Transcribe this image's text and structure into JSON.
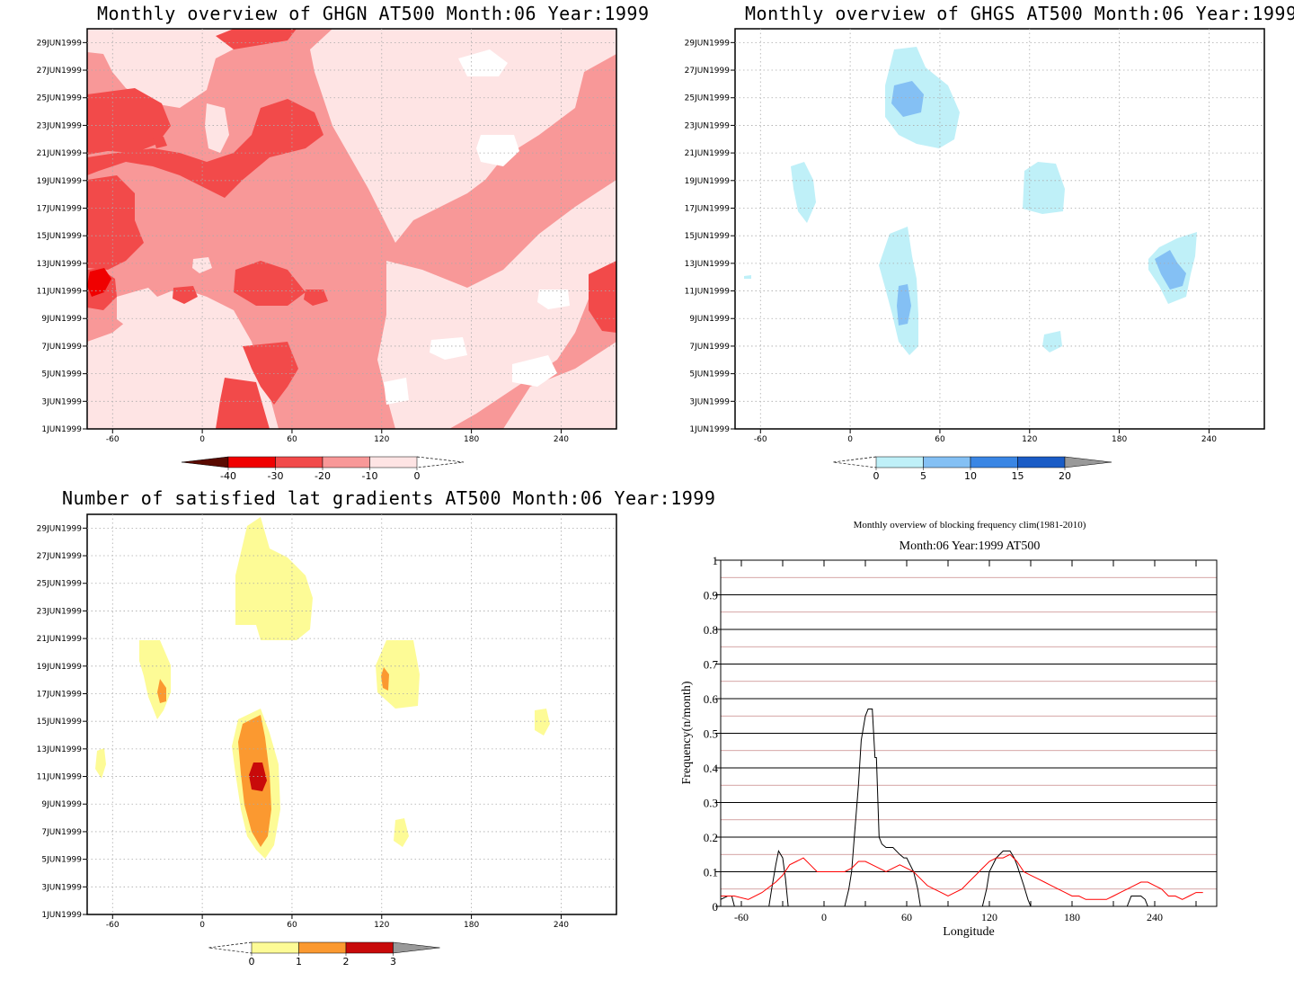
{
  "panels": {
    "ghgn": {
      "title": "Monthly overview of GHGN AT500 Month:06 Year:1999",
      "colorbar": {
        "levels": [
          "-40",
          "-30",
          "-20",
          "-10",
          "0"
        ],
        "colors": [
          "#5a0a00",
          "#f00000",
          "#f24a4a",
          "#f89898",
          "#fee4e4"
        ]
      }
    },
    "ghgs": {
      "title": "Monthly overview of GHGS AT500 Month:06 Year:1999",
      "colorbar": {
        "levels": [
          "0",
          "5",
          "10",
          "15",
          "20"
        ],
        "colors": [
          "#bff0f8",
          "#84c0f4",
          "#3a86e4",
          "#1a5cc6",
          "#999999"
        ]
      }
    },
    "lat": {
      "title": "Number of satisfied lat gradients AT500 Month:06 Year:1999",
      "colorbar": {
        "levels": [
          "0",
          "1",
          "2",
          "3"
        ],
        "colors": [
          "#fdfb96",
          "#fb9930",
          "#c80a0a",
          "#999999"
        ]
      }
    },
    "freq": {
      "title": "Monthly overview of blocking frequency clim(1981-2010)",
      "subtitle": "Month:06 Year:1999  AT500",
      "xlabel": "Longitude",
      "ylabel": "Frequency(n/month)"
    }
  },
  "axes": {
    "dates": [
      "29JUN1999",
      "27JUN1999",
      "25JUN1999",
      "23JUN1999",
      "21JUN1999",
      "19JUN1999",
      "17JUN1999",
      "15JUN1999",
      "13JUN1999",
      "11JUN1999",
      "9JUN1999",
      "7JUN1999",
      "5JUN1999",
      "3JUN1999",
      "1JUN1999"
    ],
    "lon_ticks": [
      "-60",
      "0",
      "60",
      "120",
      "180",
      "240"
    ]
  },
  "chart_data": [
    {
      "type": "heatmap",
      "title": "Monthly overview of GHGN AT500 Month:06 Year:1999",
      "xlim": [
        -77,
        277
      ],
      "x_ticks": [
        -60,
        0,
        60,
        120,
        180,
        240
      ],
      "y_ticks": [
        "1JUN1999",
        "3JUN1999",
        "5JUN1999",
        "7JUN1999",
        "9JUN1999",
        "11JUN1999",
        "13JUN1999",
        "15JUN1999",
        "17JUN1999",
        "19JUN1999",
        "21JUN1999",
        "23JUN1999",
        "25JUN1999",
        "27JUN1999",
        "29JUN1999"
      ],
      "levels": [
        -40,
        -30,
        -20,
        -10,
        0
      ],
      "colors": [
        "#5a0a00",
        "#f00000",
        "#f24a4a",
        "#f89898",
        "#fee4e4"
      ]
    },
    {
      "type": "heatmap",
      "title": "Monthly overview of GHGS AT500 Month:06 Year:1999",
      "xlim": [
        -77,
        277
      ],
      "x_ticks": [
        -60,
        0,
        60,
        120,
        180,
        240
      ],
      "levels": [
        0,
        5,
        10,
        15,
        20
      ],
      "colors": [
        "#bff0f8",
        "#84c0f4",
        "#3a86e4",
        "#1a5cc6",
        "#999999"
      ]
    },
    {
      "type": "heatmap",
      "title": "Number of satisfied lat gradients AT500 Month:06 Year:1999",
      "xlim": [
        -77,
        277
      ],
      "x_ticks": [
        -60,
        0,
        60,
        120,
        180,
        240
      ],
      "levels": [
        0,
        1,
        2,
        3
      ],
      "colors": [
        "#fdfb96",
        "#fb9930",
        "#c80a0a",
        "#999999"
      ]
    },
    {
      "type": "line",
      "title": "Monthly overview of blocking frequency clim(1981-2010)",
      "subtitle": "Month:06 Year:1999  AT500",
      "xlabel": "Longitude",
      "ylabel": "Frequency(n/month)",
      "xlim": [
        -75,
        285
      ],
      "ylim": [
        0,
        1
      ],
      "x_ticks": [
        -60,
        0,
        60,
        120,
        180,
        240
      ],
      "y_ticks": [
        0,
        0.1,
        0.2,
        0.3,
        0.4,
        0.5,
        0.6,
        0.7,
        0.8,
        0.9,
        1
      ],
      "series": [
        {
          "color": "#000000",
          "x": [
            -75,
            -70,
            -67,
            -65,
            -40,
            -38,
            -35,
            -33,
            -30,
            -28,
            -26,
            15,
            18,
            20,
            22,
            25,
            27,
            30,
            32,
            35,
            37,
            38,
            40,
            42,
            45,
            50,
            55,
            58,
            60,
            65,
            68,
            70,
            115,
            118,
            120,
            125,
            130,
            135,
            138,
            140,
            145,
            148,
            150,
            220,
            223,
            225,
            230,
            233,
            235
          ],
          "y": [
            0.02,
            0.03,
            0.03,
            0,
            0,
            0.05,
            0.12,
            0.16,
            0.14,
            0.08,
            0,
            0,
            0.05,
            0.1,
            0.2,
            0.35,
            0.48,
            0.55,
            0.57,
            0.57,
            0.43,
            0.43,
            0.2,
            0.18,
            0.17,
            0.17,
            0.15,
            0.14,
            0.14,
            0.1,
            0.05,
            0,
            0,
            0.05,
            0.1,
            0.14,
            0.16,
            0.16,
            0.14,
            0.12,
            0.06,
            0.02,
            0,
            0,
            0.03,
            0.03,
            0.03,
            0.02,
            0
          ]
        },
        {
          "color": "#ff0000",
          "x": [
            -75,
            -65,
            -55,
            -45,
            -35,
            -30,
            -25,
            -20,
            -15,
            -10,
            -5,
            0,
            5,
            10,
            15,
            20,
            25,
            30,
            35,
            40,
            45,
            50,
            55,
            60,
            65,
            70,
            75,
            80,
            85,
            90,
            95,
            100,
            105,
            110,
            115,
            120,
            125,
            130,
            135,
            140,
            145,
            150,
            155,
            160,
            165,
            170,
            175,
            180,
            185,
            190,
            195,
            200,
            205,
            210,
            215,
            220,
            225,
            230,
            235,
            240,
            245,
            250,
            255,
            260,
            265,
            270,
            275
          ],
          "y": [
            0.03,
            0.03,
            0.02,
            0.04,
            0.07,
            0.09,
            0.12,
            0.13,
            0.14,
            0.12,
            0.1,
            0.1,
            0.1,
            0.1,
            0.1,
            0.11,
            0.13,
            0.13,
            0.12,
            0.11,
            0.1,
            0.11,
            0.12,
            0.11,
            0.1,
            0.08,
            0.06,
            0.05,
            0.04,
            0.03,
            0.04,
            0.05,
            0.07,
            0.09,
            0.11,
            0.13,
            0.14,
            0.14,
            0.15,
            0.13,
            0.1,
            0.09,
            0.08,
            0.07,
            0.06,
            0.05,
            0.04,
            0.03,
            0.03,
            0.02,
            0.02,
            0.02,
            0.02,
            0.03,
            0.04,
            0.05,
            0.06,
            0.07,
            0.07,
            0.06,
            0.05,
            0.03,
            0.03,
            0.02,
            0.03,
            0.04,
            0.04
          ]
        }
      ]
    }
  ]
}
